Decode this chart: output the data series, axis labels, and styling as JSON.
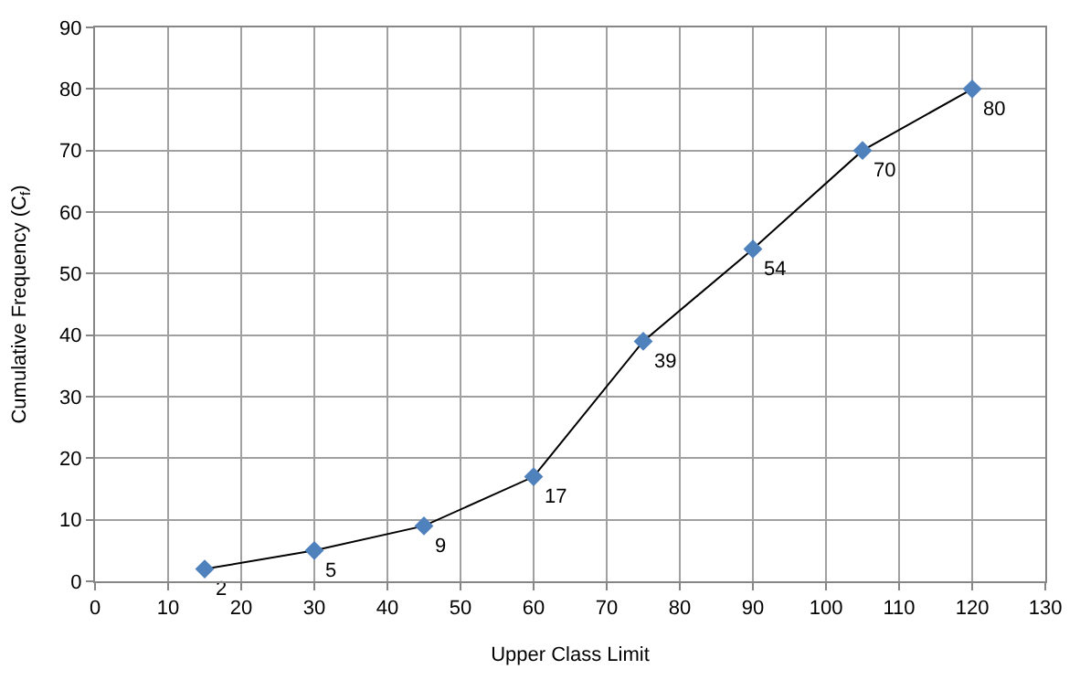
{
  "chart_data": {
    "type": "line",
    "xlabel": "Upper Class Limit",
    "ylabel": "Cumulative Frequency (C$_{f}$)",
    "x": [
      15,
      30,
      45,
      60,
      75,
      90,
      105,
      120
    ],
    "series": [
      {
        "color": "#4f81bd",
        "values": [
          2,
          5,
          9,
          17,
          39,
          54,
          70,
          80
        ]
      }
    ],
    "xlim": [
      0,
      130
    ],
    "xticks": [
      0,
      10,
      20,
      30,
      40,
      50,
      60,
      70,
      80,
      90,
      100,
      110,
      120,
      130
    ],
    "ylim": [
      0,
      90
    ],
    "yticks": [
      0,
      10,
      20,
      30,
      40,
      50,
      60,
      70,
      80,
      90
    ],
    "grid": true,
    "marker": "diamond",
    "line_style": "solid",
    "data_labels": true
  }
}
